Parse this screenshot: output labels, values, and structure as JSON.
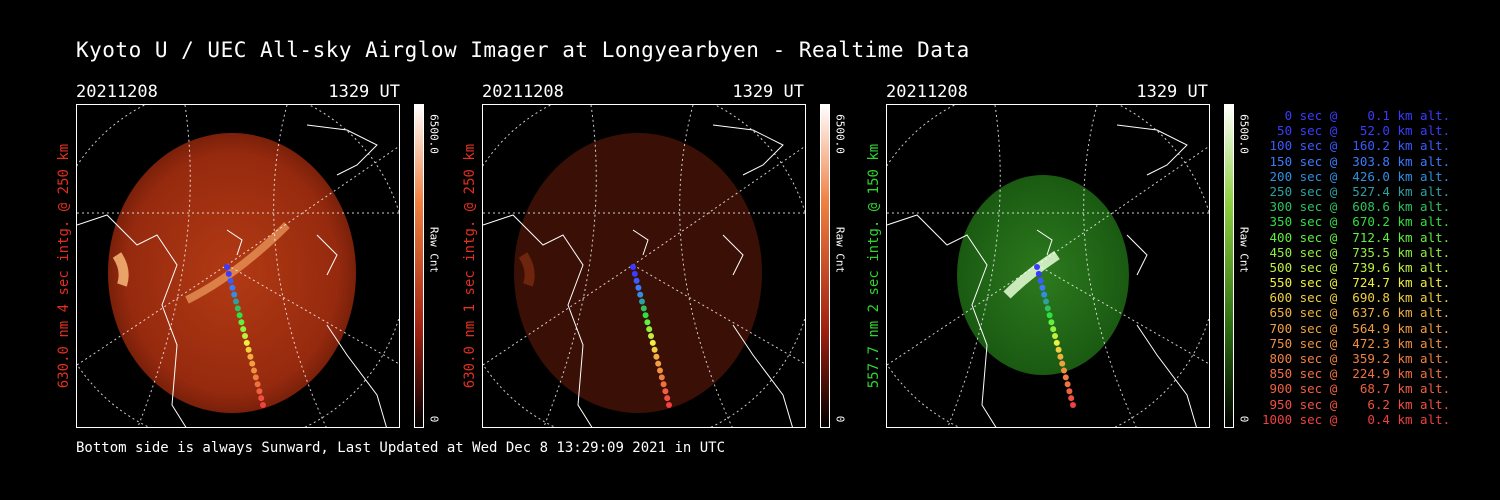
{
  "title": "Kyoto U / UEC All-sky Airglow Imager at Longyearbyen - Realtime Data",
  "footer": "Bottom side is always Sunward, Last Updated at Wed Dec  8 13:29:09 2021 in UTC",
  "panels": [
    {
      "date": "20211208",
      "time": "1329 UT",
      "label": "630.0 nm 4 sec intg. @ 250 km",
      "label_color": "#e0301e",
      "cbar_max": "6500.0",
      "cbar_unit": "Raw Cnt",
      "cbar_zero": "0",
      "cbar_color": "#c0200a",
      "glow_color": "#a52a10"
    },
    {
      "date": "20211208",
      "time": "1329 UT",
      "label": "630.0 nm 1 sec intg. @ 250 km",
      "label_color": "#e0301e",
      "cbar_max": "6500.0",
      "cbar_unit": "Raw Cnt",
      "cbar_zero": "0",
      "cbar_color": "#c0200a",
      "glow_color": "#3c0e06"
    },
    {
      "date": "20211208",
      "time": "1329 UT",
      "label": "557.7 nm 2 sec intg. @ 150 km",
      "label_color": "#2fd42f",
      "cbar_max": "6500.0",
      "cbar_unit": "Raw Cnt",
      "cbar_zero": "0",
      "cbar_color": "#2f8a10",
      "glow_color": "#1f6a14"
    }
  ],
  "legend": [
    {
      "text": "   0 sec @    0.1 km alt.",
      "color": "#3b3bff"
    },
    {
      "text": "  50 sec @   52.0 km alt.",
      "color": "#3b3bff"
    },
    {
      "text": " 100 sec @  160.2 km alt.",
      "color": "#3b5bff"
    },
    {
      "text": " 150 sec @  303.8 km alt.",
      "color": "#3b7bff"
    },
    {
      "text": " 200 sec @  426.0 km alt.",
      "color": "#2f8fe0"
    },
    {
      "text": " 250 sec @  527.4 km alt.",
      "color": "#2fa0a0"
    },
    {
      "text": " 300 sec @  608.6 km alt.",
      "color": "#2fc060"
    },
    {
      "text": " 350 sec @  670.2 km alt.",
      "color": "#2fe040"
    },
    {
      "text": " 400 sec @  712.4 km alt.",
      "color": "#5ff040"
    },
    {
      "text": " 450 sec @  735.5 km alt.",
      "color": "#8ff040"
    },
    {
      "text": " 500 sec @  739.6 km alt.",
      "color": "#bff040"
    },
    {
      "text": " 550 sec @  724.7 km alt.",
      "color": "#efef40"
    },
    {
      "text": " 600 sec @  690.8 km alt.",
      "color": "#f0d040"
    },
    {
      "text": " 650 sec @  637.6 km alt.",
      "color": "#f0b040"
    },
    {
      "text": " 700 sec @  564.9 km alt.",
      "color": "#f0a040"
    },
    {
      "text": " 750 sec @  472.3 km alt.",
      "color": "#f09040"
    },
    {
      "text": " 800 sec @  359.2 km alt.",
      "color": "#f08040"
    },
    {
      "text": " 850 sec @  224.9 km alt.",
      "color": "#f07040"
    },
    {
      "text": " 900 sec @   68.7 km alt.",
      "color": "#f06040"
    },
    {
      "text": " 950 sec @    6.2 km alt.",
      "color": "#f05040"
    },
    {
      "text": "1000 sec @    0.4 km alt.",
      "color": "#f04040"
    }
  ]
}
